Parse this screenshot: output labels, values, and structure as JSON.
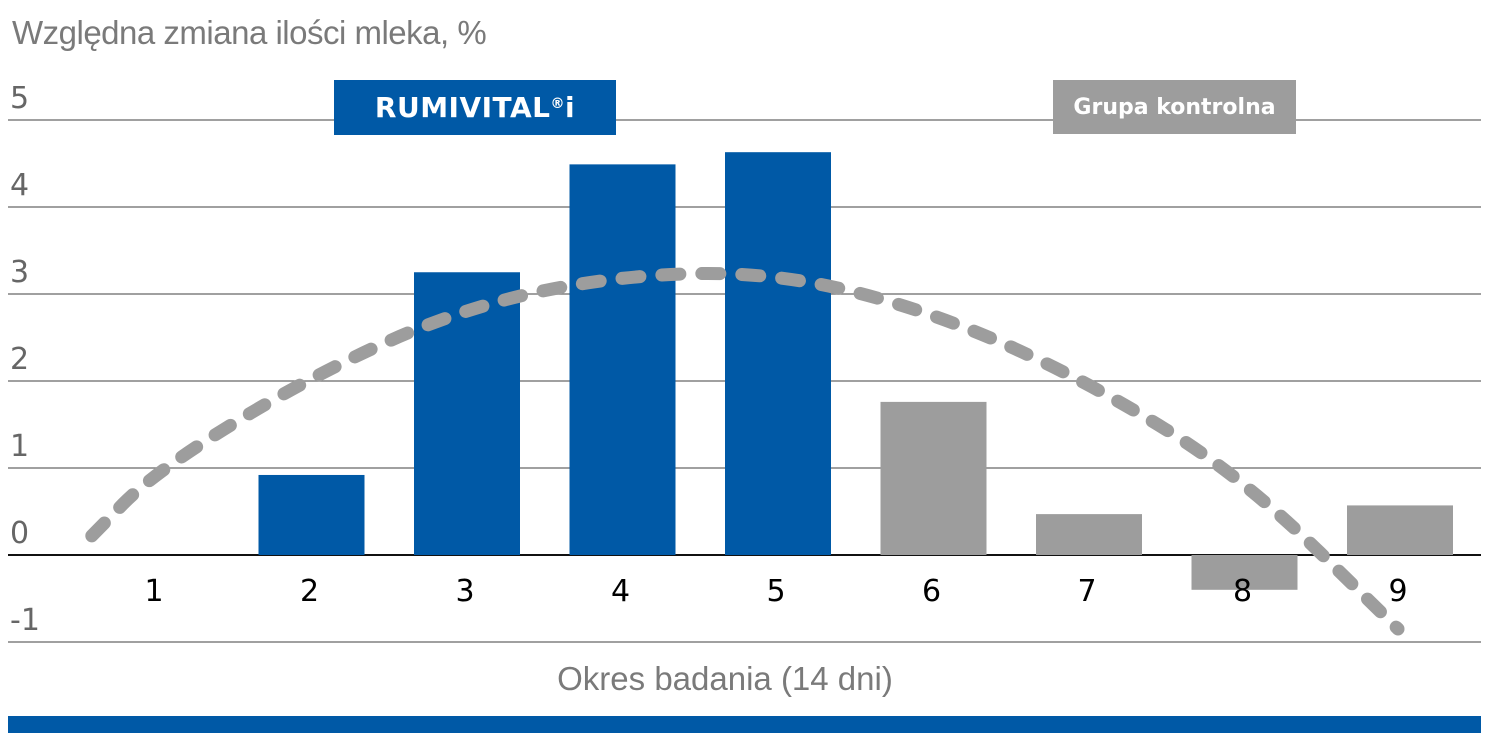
{
  "chart_data": {
    "type": "bar",
    "title": "Względna zmiana ilości mleka, %",
    "xlabel": "Okres badania (14 dni)",
    "ylabel": "Względna zmiana ilości mleka, %",
    "ylim": [
      -1,
      5
    ],
    "yticks": [
      "5",
      "4",
      "3",
      "2",
      "1",
      "0",
      "-1"
    ],
    "grid": true,
    "categories": [
      "1",
      "2",
      "3",
      "4",
      "5",
      "6",
      "7",
      "8",
      "9"
    ],
    "series": [
      {
        "name": "RUMIVITAL®i",
        "color": "#0059a6",
        "values": [
          null,
          0.92,
          3.25,
          4.49,
          4.63,
          null,
          null,
          null,
          null
        ]
      },
      {
        "name": "Grupa kontrolna",
        "color": "#9d9d9d",
        "values": [
          null,
          null,
          null,
          null,
          null,
          1.76,
          0.47,
          -0.4,
          0.57
        ]
      }
    ],
    "trendline": {
      "style": "dashed",
      "color": "#9d9d9d",
      "x": [
        0.6,
        1.0,
        2.0,
        3.0,
        4.0,
        5.0,
        6.0,
        7.0,
        8.0,
        9.0
      ],
      "y": [
        0.22,
        0.95,
        2.05,
        2.85,
        3.22,
        3.25,
        2.8,
        2.0,
        0.9,
        -0.85
      ]
    },
    "legend": {
      "position": "top",
      "entries": [
        "RUMIVITAL®i",
        "Grupa kontrolna"
      ]
    }
  },
  "labels": {
    "title": "Względna zmiana ilości mleka, %",
    "xlabel": "Okres badania (14 dni)",
    "legend_rumi_main": "RUMIVITAL",
    "legend_rumi_sup": "®",
    "legend_rumi_tail": "i",
    "legend_ctrl": "Grupa kontrolna"
  },
  "colors": {
    "brand_blue": "#0059a6",
    "control_gray": "#9d9d9d",
    "axis_text": "#666666",
    "grid": "#7f7f7f"
  }
}
